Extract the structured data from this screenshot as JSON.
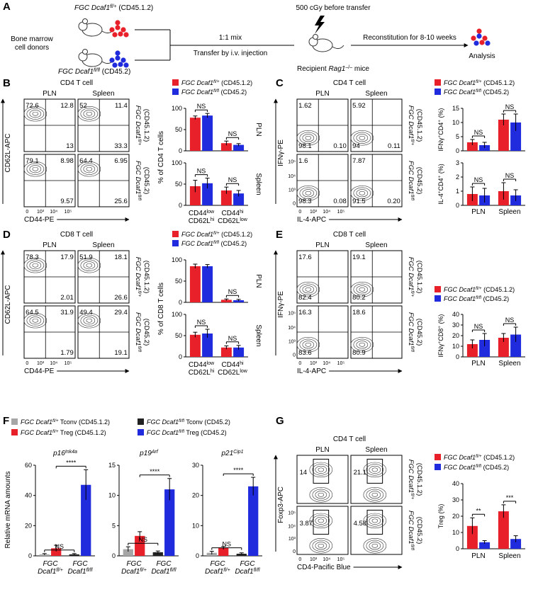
{
  "panels": {
    "A": {
      "letter": "A",
      "donor1": [
        {
          "i": "FGC Dcaf1"
        },
        {
          "isup": "fl/+"
        },
        " (CD45.1.2)"
      ],
      "donor2": [
        {
          "i": "FGC Dcaf1"
        },
        {
          "isup": "fl/fl"
        },
        " (CD45.2)"
      ],
      "donors": [
        "Bone marrow",
        "cell donors"
      ],
      "mix": "1:1 mix",
      "transfer": "Transfer by i.v. injection",
      "irradiation": "500 cGy before transfer",
      "recipient": [
        "Recipient ",
        {
          "i": "Rag1"
        },
        {
          "sup": "–/–"
        },
        " mice"
      ],
      "reconstitution": "Reconstitution for 8-10 weeks",
      "analysis": "Analysis"
    },
    "B": {
      "letter": "B",
      "title": "CD4 T cell",
      "cols": [
        "PLN",
        "Spleen"
      ],
      "rows": [
        {
          "gene": [
            {
              "i": "FGC Dcaf1"
            },
            {
              "isup": "fl/+"
            }
          ],
          "tag": "(CD45.1.2)"
        },
        {
          "gene": [
            {
              "i": "FGC Dcaf1"
            },
            {
              "isup": "fl/fl"
            }
          ],
          "tag": "(CD45.2)"
        }
      ],
      "ylabel": "CD62L-APC",
      "xlabel": "CD44-PE",
      "xticklabels": [
        "0",
        "10³",
        "10⁴",
        "10⁵"
      ],
      "gates": [
        [
          {
            "tl": 72.6,
            "tr": 12.8,
            "br": 13
          },
          {
            "tl": 52,
            "tr": 11.4,
            "br": 33.3
          }
        ],
        [
          {
            "tl": 79.1,
            "tr": 8.98,
            "br": 9.57
          },
          {
            "tl": 64.4,
            "tr": 6.95,
            "br": 25.6
          }
        ]
      ],
      "legend": [
        {
          "name": [
            {
              "i": "FGC Dcaf1"
            },
            {
              "isup": "fl/+"
            },
            " (CD45.1.2)"
          ],
          "color": "#e8202a"
        },
        {
          "name": [
            {
              "i": "FGC Dcaf1"
            },
            {
              "isup": "fl/fl"
            },
            " (CD45.2)"
          ],
          "color": "#1f2bdc"
        }
      ],
      "chart_ylabel": "% of CD4 T cells",
      "categories": [
        [
          [
            "CD44",
            {
              "sup": "low"
            }
          ],
          [
            "CD62L",
            {
              "sup": "hi"
            }
          ]
        ],
        [
          [
            "CD44",
            {
              "sup": "hi"
            }
          ],
          [
            "CD62L",
            {
              "sup": "low"
            }
          ]
        ]
      ],
      "charts": [
        {
          "label": "PLN",
          "ylim": [
            0,
            100
          ],
          "yticks": [
            0,
            50,
            100
          ],
          "series": [
            {
              "values": [
                78,
                18
              ],
              "errors": [
                4,
                5
              ]
            },
            {
              "values": [
                83,
                14
              ],
              "errors": [
                5,
                3
              ]
            }
          ],
          "sig": [
            "NS",
            "NS"
          ]
        },
        {
          "label": "Spleen",
          "ylim": [
            0,
            100
          ],
          "yticks": [
            0,
            50,
            100
          ],
          "series": [
            {
              "values": [
                45,
                35
              ],
              "errors": [
                14,
                8
              ]
            },
            {
              "values": [
                52,
                28
              ],
              "errors": [
                12,
                7
              ]
            }
          ],
          "sig": [
            "NS",
            "NS"
          ]
        }
      ]
    },
    "C": {
      "letter": "C",
      "title": "CD4 T cell",
      "cols": [
        "PLN",
        "Spleen"
      ],
      "rows": [
        {
          "gene": [
            {
              "i": "FGC Dcaf1"
            },
            {
              "isup": "fl/+"
            }
          ],
          "tag": "(CD45.1.2)"
        },
        {
          "gene": [
            {
              "i": "FGC Dcaf1"
            },
            {
              "isup": "fl/fl"
            }
          ],
          "tag": "(CD45.2)"
        }
      ],
      "ylabel": "IFNγ-PE",
      "xlabel": "IL-4-APC",
      "xticklabels": [
        "0",
        "10³",
        "10⁴",
        "10⁵"
      ],
      "yticklabels": [
        "0",
        "10³",
        "10⁴",
        "10⁵"
      ],
      "gates": [
        [
          {
            "tl": 1.62,
            "bl": 98.1,
            "br": {
              "value": 0.1,
              "label": "0.10"
            }
          },
          {
            "tl": 5.92,
            "bl": 94,
            "br": 0.11
          }
        ],
        [
          {
            "tl": 1.6,
            "bl": 98.3,
            "br": 0.08
          },
          {
            "tl": 7.87,
            "bl": 91.5,
            "br": {
              "value": 0.2,
              "label": "0.20"
            }
          }
        ]
      ],
      "legend": [
        {
          "name": [
            {
              "i": "FGC Dcaf1"
            },
            {
              "isup": "fl/+"
            },
            " (CD45.1.2)"
          ],
          "color": "#e8202a"
        },
        {
          "name": [
            {
              "i": "FGC Dcaf1"
            },
            {
              "isup": "fl/fl"
            },
            " (CD45.2)"
          ],
          "color": "#1f2bdc"
        }
      ],
      "categories": [
        "PLN",
        "Spleen"
      ],
      "charts": [
        {
          "ylabel": [
            "IFNγ",
            {
              "sup": "+"
            },
            "CD4",
            {
              "sup": "+"
            },
            " (%)"
          ],
          "ylim": [
            0,
            15
          ],
          "yticks": [
            0,
            5,
            10,
            15
          ],
          "series": [
            {
              "values": [
                3,
                11
              ],
              "errors": [
                1,
                2
              ]
            },
            {
              "values": [
                2,
                10
              ],
              "errors": [
                1,
                3
              ]
            }
          ],
          "sig": [
            "NS",
            "NS"
          ]
        },
        {
          "ylabel": [
            "IL-4",
            {
              "sup": "+"
            },
            "CD4",
            {
              "sup": "+"
            },
            " (%)"
          ],
          "ylim": [
            0,
            3
          ],
          "yticks": [
            0,
            1,
            2,
            3
          ],
          "series": [
            {
              "values": [
                0.8,
                1.0
              ],
              "errors": [
                0.5,
                0.6
              ]
            },
            {
              "values": [
                0.7,
                0.7
              ],
              "errors": [
                0.5,
                0.4
              ]
            }
          ],
          "sig": [
            "NS",
            "NS"
          ]
        }
      ]
    },
    "D": {
      "letter": "D",
      "title": "CD8 T cell",
      "cols": [
        "PLN",
        "Spleen"
      ],
      "rows": [
        {
          "gene": [
            {
              "i": "FGC Dcaf1"
            },
            {
              "isup": "fl/+"
            }
          ],
          "tag": "(CD45.1.2)"
        },
        {
          "gene": [
            {
              "i": "FGC Dcaf1"
            },
            {
              "isup": "fl/fl"
            }
          ],
          "tag": "(CD45.2)"
        }
      ],
      "ylabel": "CD62L-APC",
      "xlabel": "CD44-PE",
      "xticklabels": [
        "0",
        "10³",
        "10⁴",
        "10⁵"
      ],
      "gates": [
        [
          {
            "tl": 78.3,
            "tr": 17.9,
            "br": 2.01
          },
          {
            "tl": 51.9,
            "tr": 18.1,
            "br": 26.6
          }
        ],
        [
          {
            "tl": 64.5,
            "tr": 31.9,
            "br": 1.79
          },
          {
            "tl": 49.4,
            "tr": 29.4,
            "br": 19.1
          }
        ]
      ],
      "legend": [
        {
          "name": [
            {
              "i": "FGC Dcaf1"
            },
            {
              "isup": "fl/+"
            },
            " (CD45.1.2)"
          ],
          "color": "#e8202a"
        },
        {
          "name": [
            {
              "i": "FGC Dcaf1"
            },
            {
              "isup": "fl/fl"
            },
            " (CD45.2)"
          ],
          "color": "#1f2bdc"
        }
      ],
      "chart_ylabel": "% of CD8 T cells",
      "categories": [
        [
          [
            "CD44",
            {
              "sup": "low"
            }
          ],
          [
            "CD62L",
            {
              "sup": "hi"
            }
          ]
        ],
        [
          [
            "CD44",
            {
              "sup": "hi"
            }
          ],
          [
            "CD62L",
            {
              "sup": "low"
            }
          ]
        ]
      ],
      "charts": [
        {
          "label": "PLN",
          "ylim": [
            0,
            100
          ],
          "yticks": [
            0,
            50,
            100
          ],
          "series": [
            {
              "values": [
                85,
                6
              ],
              "errors": [
                5,
                2
              ]
            },
            {
              "values": [
                85,
                5
              ],
              "errors": [
                4,
                2
              ]
            }
          ],
          "sig": [
            null,
            "NS"
          ]
        },
        {
          "label": "Spleen",
          "ylim": [
            0,
            100
          ],
          "yticks": [
            0,
            50,
            100
          ],
          "series": [
            {
              "values": [
                52,
                22
              ],
              "errors": [
                6,
                4
              ]
            },
            {
              "values": [
                55,
                22
              ],
              "errors": [
                10,
                5
              ]
            }
          ],
          "sig": [
            "NS",
            "NS"
          ]
        }
      ]
    },
    "E": {
      "letter": "E",
      "title": "CD8 T cell",
      "cols": [
        "PLN",
        "Spleen"
      ],
      "rows": [
        {
          "gene": [
            {
              "i": "FGC Dcaf1"
            },
            {
              "isup": "fl/+"
            }
          ],
          "tag": "(CD45.1.2)"
        },
        {
          "gene": [
            {
              "i": "FGC Dcaf1"
            },
            {
              "isup": "fl/fl"
            }
          ],
          "tag": "(CD45.2)"
        }
      ],
      "ylabel": "IFNγ-PE",
      "xlabel": "IL-4-APC",
      "xticklabels": [
        "0",
        "10³",
        "10⁴",
        "10⁵"
      ],
      "yticklabels": [
        "0",
        "10³",
        "10⁴",
        "10⁵"
      ],
      "gates": [
        [
          {
            "tl": 17.6,
            "bl": 82.4
          },
          {
            "tl": 19.1,
            "bl": 80.2
          }
        ],
        [
          {
            "tl": 16.3,
            "bl": 83.6
          },
          {
            "tl": 18.6,
            "bl": 80.9
          }
        ]
      ],
      "legend": [
        {
          "name": [
            {
              "i": "FGC Dcaf1"
            },
            {
              "isup": "fl/+"
            },
            " (CD45.1.2)"
          ],
          "color": "#e8202a"
        },
        {
          "name": [
            {
              "i": "FGC Dcaf1"
            },
            {
              "isup": "fl/fl"
            },
            " (CD45.2)"
          ],
          "color": "#1f2bdc"
        }
      ],
      "categories": [
        "PLN",
        "Spleen"
      ],
      "charts": [
        {
          "ylabel": [
            "IFNγ",
            {
              "sup": "+"
            },
            "CD8",
            {
              "sup": "+"
            },
            " (%)"
          ],
          "ylim": [
            0,
            40
          ],
          "yticks": [
            0,
            10,
            20,
            30,
            40
          ],
          "series": [
            {
              "values": [
                12,
                18
              ],
              "errors": [
                4,
                4
              ]
            },
            {
              "values": [
                16,
                21
              ],
              "errors": [
                6,
                7
              ]
            }
          ],
          "sig": [
            "NS",
            "NS"
          ]
        }
      ]
    },
    "F": {
      "letter": "F",
      "legend": [
        {
          "name": [
            {
              "i": "FGC Dcaf1"
            },
            {
              "isup": "fl/+"
            },
            " Tconv (CD45.1.2)"
          ],
          "color": "#a6a6a6"
        },
        {
          "name": [
            {
              "i": "FGC Dcaf1"
            },
            {
              "isup": "fl/fl"
            },
            " Tconv (CD45.2)"
          ],
          "color": "#222222"
        },
        {
          "name": [
            {
              "i": "FGC Dcaf1"
            },
            {
              "isup": "fl/+"
            },
            " Treg (CD45.1.2)"
          ],
          "color": "#e8202a"
        },
        {
          "name": [
            {
              "i": "FGC Dcaf1"
            },
            {
              "isup": "fl/fl"
            },
            " Treg (CD45.2)"
          ],
          "color": "#1f2bdc"
        }
      ],
      "ylabel": "Relative mRNA amounts",
      "categories": [
        [
          [
            {
              "i": "FGC"
            }
          ],
          [
            {
              "i": "Dcaf1"
            },
            {
              "isup": "fl/+"
            }
          ]
        ],
        [
          [
            {
              "i": "FGC"
            }
          ],
          [
            {
              "i": "Dcaf1"
            },
            {
              "isup": "fl/fl"
            }
          ]
        ]
      ],
      "charts": [
        {
          "title": [
            {
              "i": "p16"
            },
            {
              "isup": "Ink4a"
            }
          ],
          "ylim": [
            0,
            60
          ],
          "yticks": [
            0,
            20,
            40,
            60
          ],
          "values": [
            1,
            1,
            5,
            47
          ],
          "errors": [
            0.5,
            0.5,
            2,
            10
          ],
          "sig": [
            "NS",
            "****"
          ]
        },
        {
          "title": [
            {
              "i": "p19"
            },
            {
              "isup": "Arf"
            }
          ],
          "ylim": [
            0,
            15
          ],
          "yticks": [
            0,
            5,
            10,
            15
          ],
          "values": [
            1.1,
            0.6,
            3.3,
            11
          ],
          "errors": [
            0.4,
            0.2,
            0.7,
            1.8
          ],
          "sig": [
            "NS",
            "****"
          ]
        },
        {
          "title": [
            {
              "i": "p21"
            },
            {
              "isup": "Cip1"
            }
          ],
          "ylim": [
            0,
            30
          ],
          "yticks": [
            0,
            10,
            20,
            30
          ],
          "values": [
            1,
            0.7,
            2.6,
            23
          ],
          "errors": [
            0.5,
            0.3,
            0.5,
            3
          ],
          "sig": [
            "NS",
            "****"
          ]
        }
      ]
    },
    "G": {
      "letter": "G",
      "title": "CD4 T cell",
      "cols": [
        "PLN",
        "Spleen"
      ],
      "rows": [
        {
          "gene": [
            {
              "i": "FGC Dcaf1"
            },
            {
              "isup": "fl/+"
            }
          ],
          "tag": "(CD45.1.2)"
        },
        {
          "gene": [
            {
              "i": "FGC Dcaf1"
            },
            {
              "isup": "fl/fl"
            }
          ],
          "tag": "(CD45.2)"
        }
      ],
      "ylabel": "Foxp3-APC",
      "xlabel": "CD4-Pacific Blue",
      "xticklabels": [
        "0",
        "10³",
        "10⁴",
        "10⁵"
      ],
      "yticklabels": [
        "0",
        "10³",
        "10⁴",
        "10⁵"
      ],
      "gates": [
        [
          {
            "ml": 14
          },
          {
            "ml": 21.1
          }
        ],
        [
          {
            "ml": 3.87
          },
          {
            "ml": 4.58
          }
        ]
      ],
      "legend": [
        {
          "name": [
            {
              "i": "FGC Dcaf1"
            },
            {
              "isup": "fl/+"
            },
            " (CD45.1.2)"
          ],
          "color": "#e8202a"
        },
        {
          "name": [
            {
              "i": "FGC Dcaf1"
            },
            {
              "isup": "fl/fl"
            },
            " (CD45.2)"
          ],
          "color": "#1f2bdc"
        }
      ],
      "categories": [
        "PLN",
        "Spleen"
      ],
      "charts": [
        {
          "ylabel": "Treg (%)",
          "ylim": [
            0,
            40
          ],
          "yticks": [
            0,
            10,
            20,
            30,
            40
          ],
          "series": [
            {
              "values": [
                14,
                23
              ],
              "errors": [
                5,
                4
              ]
            },
            {
              "values": [
                4,
                6
              ],
              "errors": [
                1,
                2
              ]
            }
          ],
          "sig": [
            "**",
            "***"
          ]
        }
      ]
    }
  }
}
